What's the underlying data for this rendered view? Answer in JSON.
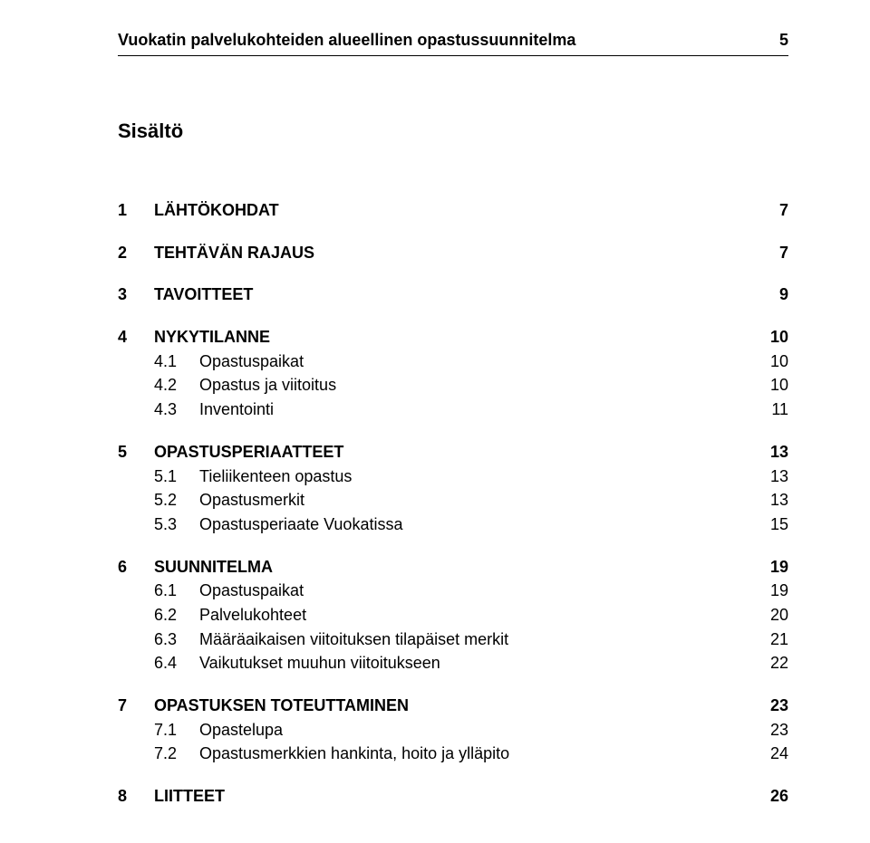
{
  "header": {
    "title": "Vuokatin palvelukohteiden alueellinen opastussuunnitelma",
    "page_number": "5"
  },
  "subtitle": "Sisältö",
  "toc": [
    {
      "type": "section",
      "num": "1",
      "label": "LÄHTÖKOHDAT",
      "page": "7"
    },
    {
      "type": "section",
      "num": "2",
      "label": "TEHTÄVÄN RAJAUS",
      "page": "7"
    },
    {
      "type": "section",
      "num": "3",
      "label": "TAVOITTEET",
      "page": "9"
    },
    {
      "type": "section",
      "num": "4",
      "label": "NYKYTILANNE",
      "page": "10",
      "items": [
        {
          "subnum": "4.1",
          "label": "Opastuspaikat",
          "page": "10"
        },
        {
          "subnum": "4.2",
          "label": "Opastus ja viitoitus",
          "page": "10"
        },
        {
          "subnum": "4.3",
          "label": "Inventointi",
          "page": "11"
        }
      ]
    },
    {
      "type": "section",
      "num": "5",
      "label": "OPASTUSPERIAATTEET",
      "page": "13",
      "items": [
        {
          "subnum": "5.1",
          "label": "Tieliikenteen opastus",
          "page": "13"
        },
        {
          "subnum": "5.2",
          "label": "Opastusmerkit",
          "page": "13"
        },
        {
          "subnum": "5.3",
          "label": "Opastusperiaate Vuokatissa",
          "page": "15"
        }
      ]
    },
    {
      "type": "section",
      "num": "6",
      "label": "SUUNNITELMA",
      "page": "19",
      "items": [
        {
          "subnum": "6.1",
          "label": "Opastuspaikat",
          "page": "19"
        },
        {
          "subnum": "6.2",
          "label": "Palvelukohteet",
          "page": "20"
        },
        {
          "subnum": "6.3",
          "label": "Määräaikaisen viitoituksen tilapäiset merkit",
          "page": "21"
        },
        {
          "subnum": "6.4",
          "label": "Vaikutukset muuhun viitoitukseen",
          "page": "22"
        }
      ]
    },
    {
      "type": "section",
      "num": "7",
      "label": "OPASTUKSEN TOTEUTTAMINEN",
      "page": "23",
      "items": [
        {
          "subnum": "7.1",
          "label": "Opastelupa",
          "page": "23"
        },
        {
          "subnum": "7.2",
          "label": "Opastusmerkkien hankinta, hoito ja ylläpito",
          "page": "24"
        }
      ]
    },
    {
      "type": "section",
      "num": "8",
      "label": "LIITTEET",
      "page": "26"
    }
  ]
}
